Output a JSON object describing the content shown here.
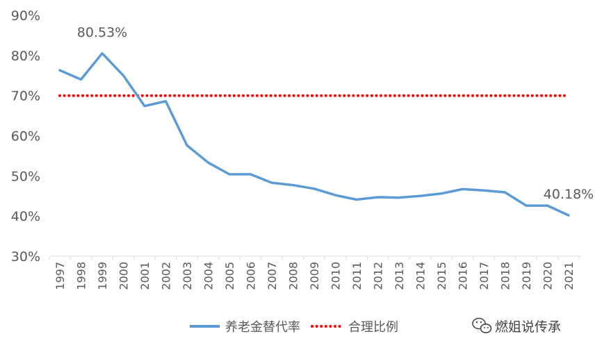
{
  "chart_data": {
    "type": "line",
    "categories": [
      "1997",
      "1998",
      "1999",
      "2000",
      "2001",
      "2002",
      "2003",
      "2004",
      "2005",
      "2006",
      "2007",
      "2008",
      "2009",
      "2010",
      "2011",
      "2012",
      "2013",
      "2014",
      "2015",
      "2016",
      "2017",
      "2018",
      "2019",
      "2020",
      "2021"
    ],
    "series": [
      {
        "name": "养老金替代率",
        "color": "#5b9bd5",
        "style": "solid",
        "values": [
          76.3,
          74.0,
          80.53,
          75.0,
          67.4,
          68.6,
          57.6,
          53.3,
          50.4,
          50.4,
          48.3,
          47.7,
          46.8,
          45.2,
          44.1,
          44.7,
          44.6,
          45.0,
          45.6,
          46.7,
          46.4,
          45.9,
          42.6,
          42.6,
          40.18
        ]
      },
      {
        "name": "合理比例",
        "color": "#ff0000",
        "style": "dotted",
        "values": [
          70,
          70,
          70,
          70,
          70,
          70,
          70,
          70,
          70,
          70,
          70,
          70,
          70,
          70,
          70,
          70,
          70,
          70,
          70,
          70,
          70,
          70,
          70,
          70,
          70
        ]
      }
    ],
    "ylim": [
      30,
      90
    ],
    "yticks": [
      "30%",
      "40%",
      "50%",
      "60%",
      "70%",
      "80%",
      "90%"
    ],
    "ytick_values": [
      30,
      40,
      50,
      60,
      70,
      80,
      90
    ],
    "annotations": [
      {
        "text": "80.53%",
        "category": "1999",
        "value": 80.53
      },
      {
        "text": "40.18%",
        "category": "2021",
        "value": 40.18
      }
    ],
    "legend_position": "bottom",
    "grid": false
  },
  "watermark": {
    "text": "燃姐说传承",
    "icon": "wechat-icon"
  }
}
